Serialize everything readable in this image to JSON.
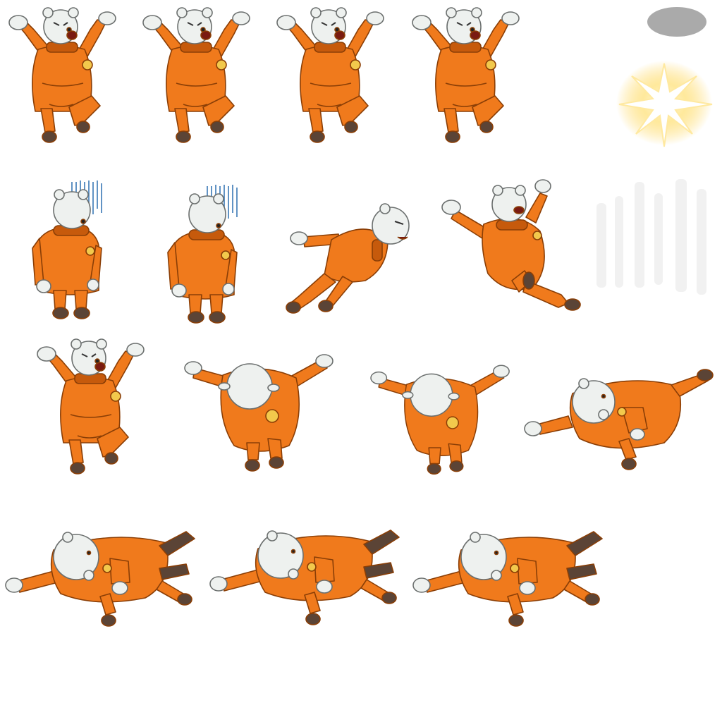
{
  "sheet": {
    "background": "#ffffff",
    "character": {
      "suit_color": "#f07a1c",
      "suit_shade": "#c65a0c",
      "suit_outline": "#8a3e06",
      "fur_color": "#eef1ef",
      "fur_outline": "#6b6f6e",
      "boot_color": "#5b4436",
      "emblem_color": "#f2c94c",
      "mouth_color": "#7a1b12"
    },
    "effects": {
      "shadow_color": "#aaaaaa",
      "flash_color": "#fff6c8",
      "flash_glow": "#ffd24a",
      "dread_lines_color": "#3a78b5"
    },
    "frames": [
      {
        "name": "angry-arms-up-1",
        "row": 1,
        "pose": "arms-up"
      },
      {
        "name": "angry-arms-up-2",
        "row": 1,
        "pose": "arms-up"
      },
      {
        "name": "angry-arms-up-3",
        "row": 1,
        "pose": "arms-up"
      },
      {
        "name": "angry-arms-up-4",
        "row": 1,
        "pose": "arms-up"
      },
      {
        "name": "depressed-1",
        "row": 2,
        "pose": "slump"
      },
      {
        "name": "depressed-2",
        "row": 2,
        "pose": "slump"
      },
      {
        "name": "dash-kick",
        "row": 2,
        "pose": "dash"
      },
      {
        "name": "knocked-back",
        "row": 2,
        "pose": "fall-back"
      },
      {
        "name": "jump-angry",
        "row": 3,
        "pose": "arms-up"
      },
      {
        "name": "turn-back-1",
        "row": 3,
        "pose": "back"
      },
      {
        "name": "turn-back-2",
        "row": 3,
        "pose": "back"
      },
      {
        "name": "spin-side",
        "row": 3,
        "pose": "side"
      },
      {
        "name": "knockdown-1",
        "row": 4,
        "pose": "down"
      },
      {
        "name": "knockdown-2",
        "row": 4,
        "pose": "down"
      },
      {
        "name": "knockdown-3",
        "row": 4,
        "pose": "down"
      }
    ]
  }
}
